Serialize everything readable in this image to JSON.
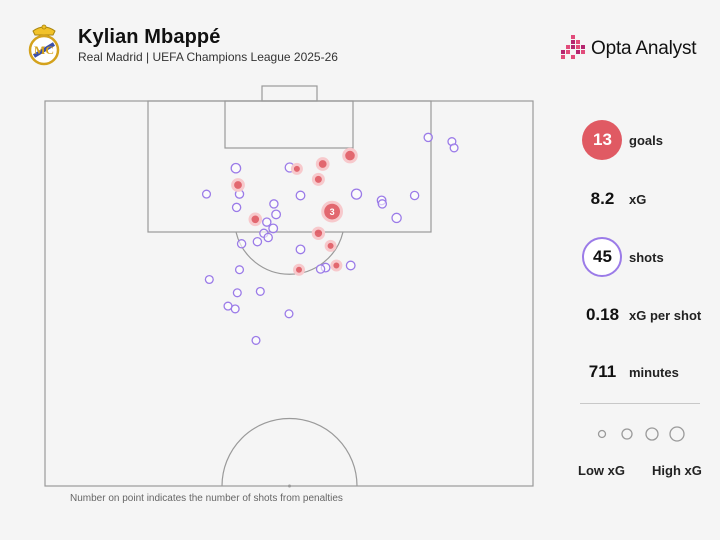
{
  "header": {
    "title": "Kylian Mbappé",
    "subtitle": "Real Madrid | UEFA Champions League 2025-26",
    "brand": "Opta Analyst"
  },
  "colors": {
    "goal": "#e05a63",
    "shot": "#9b7be8",
    "pitch_line": "#9a9a9a",
    "background": "#f5f5f5"
  },
  "chart_data": {
    "type": "scatter",
    "pitch": "half-pitch shot map",
    "shots": [
      {
        "x": 42.5,
        "y": 97.2,
        "xG": 0.24,
        "goal": true,
        "penalties": 0
      },
      {
        "x": 38.7,
        "y": 96.0,
        "xG": 0.14,
        "goal": true,
        "penalties": 0
      },
      {
        "x": 38.1,
        "y": 93.8,
        "xG": 0.1,
        "goal": true,
        "penalties": 0
      },
      {
        "x": 35.1,
        "y": 95.3,
        "xG": 0.06,
        "goal": true,
        "penalties": 0
      },
      {
        "x": 26.9,
        "y": 93.0,
        "xG": 0.14,
        "goal": true,
        "penalties": 0
      },
      {
        "x": 40.0,
        "y": 89.2,
        "xG": 0.79,
        "goal": true,
        "penalties": 3
      },
      {
        "x": 29.3,
        "y": 88.1,
        "xG": 0.13,
        "goal": true,
        "penalties": 0
      },
      {
        "x": 38.1,
        "y": 86.1,
        "xG": 0.12,
        "goal": true,
        "penalties": 0
      },
      {
        "x": 39.8,
        "y": 84.3,
        "xG": 0.06,
        "goal": true,
        "penalties": 0
      },
      {
        "x": 40.6,
        "y": 81.5,
        "xG": 0.06,
        "goal": true,
        "penalties": 0
      },
      {
        "x": 35.4,
        "y": 80.9,
        "xG": 0.06,
        "goal": true,
        "penalties": 0
      },
      {
        "x": 26.6,
        "y": 95.4,
        "xG": 0.08,
        "goal": false
      },
      {
        "x": 27.1,
        "y": 91.7,
        "xG": 0.04,
        "goal": false
      },
      {
        "x": 26.7,
        "y": 89.8,
        "xG": 0.04,
        "goal": false
      },
      {
        "x": 34.1,
        "y": 95.5,
        "xG": 0.06,
        "goal": false
      },
      {
        "x": 35.6,
        "y": 91.5,
        "xG": 0.05,
        "goal": false
      },
      {
        "x": 31.9,
        "y": 90.3,
        "xG": 0.04,
        "goal": false
      },
      {
        "x": 32.2,
        "y": 88.8,
        "xG": 0.05,
        "goal": false
      },
      {
        "x": 30.9,
        "y": 87.7,
        "xG": 0.04,
        "goal": false
      },
      {
        "x": 31.8,
        "y": 86.8,
        "xG": 0.05,
        "goal": false
      },
      {
        "x": 30.5,
        "y": 86.1,
        "xG": 0.04,
        "goal": false
      },
      {
        "x": 31.1,
        "y": 85.5,
        "xG": 0.04,
        "goal": false
      },
      {
        "x": 29.6,
        "y": 84.9,
        "xG": 0.04,
        "goal": false
      },
      {
        "x": 35.6,
        "y": 83.8,
        "xG": 0.05,
        "goal": false
      },
      {
        "x": 27.4,
        "y": 84.6,
        "xG": 0.04,
        "goal": false
      },
      {
        "x": 43.4,
        "y": 91.7,
        "xG": 0.1,
        "goal": false
      },
      {
        "x": 46.9,
        "y": 90.8,
        "xG": 0.05,
        "goal": false
      },
      {
        "x": 47.0,
        "y": 90.3,
        "xG": 0.04,
        "goal": false
      },
      {
        "x": 49.0,
        "y": 88.3,
        "xG": 0.07,
        "goal": false
      },
      {
        "x": 51.5,
        "y": 91.5,
        "xG": 0.04,
        "goal": false
      },
      {
        "x": 53.4,
        "y": 99.8,
        "xG": 0.04,
        "goal": false
      },
      {
        "x": 56.7,
        "y": 99.2,
        "xG": 0.03,
        "goal": false
      },
      {
        "x": 57.0,
        "y": 98.3,
        "xG": 0.03,
        "goal": false
      },
      {
        "x": 39.1,
        "y": 81.2,
        "xG": 0.05,
        "goal": false
      },
      {
        "x": 42.6,
        "y": 81.5,
        "xG": 0.05,
        "goal": false
      },
      {
        "x": 38.4,
        "y": 81.0,
        "xG": 0.04,
        "goal": false
      },
      {
        "x": 27.1,
        "y": 80.9,
        "xG": 0.03,
        "goal": false
      },
      {
        "x": 22.9,
        "y": 79.5,
        "xG": 0.03,
        "goal": false
      },
      {
        "x": 26.8,
        "y": 77.6,
        "xG": 0.03,
        "goal": false
      },
      {
        "x": 30.0,
        "y": 77.8,
        "xG": 0.03,
        "goal": false
      },
      {
        "x": 25.5,
        "y": 75.7,
        "xG": 0.03,
        "goal": false
      },
      {
        "x": 26.5,
        "y": 75.3,
        "xG": 0.03,
        "goal": false
      },
      {
        "x": 34.0,
        "y": 74.6,
        "xG": 0.03,
        "goal": false
      },
      {
        "x": 29.4,
        "y": 70.8,
        "xG": 0.03,
        "goal": false
      },
      {
        "x": 22.5,
        "y": 91.7,
        "xG": 0.03,
        "goal": false
      }
    ]
  },
  "stats": [
    {
      "value": "13",
      "label": "goals",
      "marker": "red"
    },
    {
      "value": "8.2",
      "label": "xG",
      "marker": "none"
    },
    {
      "value": "45",
      "label": "shots",
      "marker": "ring"
    },
    {
      "value": "0.18",
      "label": "xG per shot",
      "marker": "none"
    },
    {
      "value": "711",
      "label": "minutes",
      "marker": "none"
    }
  ],
  "legend": {
    "low_label": "Low xG",
    "high_label": "High xG"
  },
  "footnote": "Number on point indicates the number of shots from penalties"
}
